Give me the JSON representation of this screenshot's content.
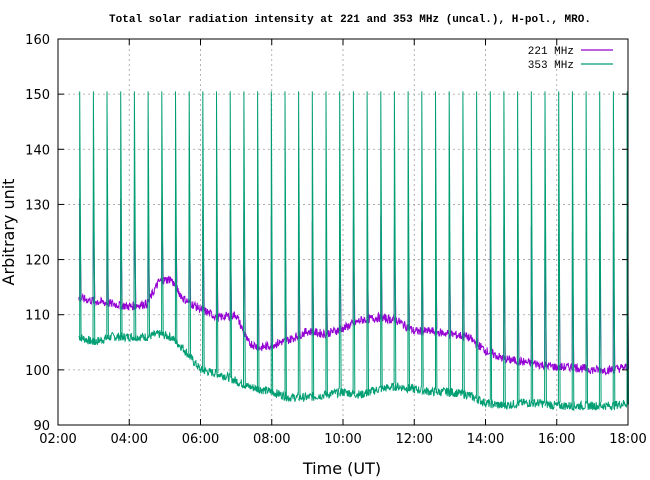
{
  "chart_data": {
    "type": "line",
    "title": "Total solar radiation intensity at 221 and 353 MHz (uncal.), H-pol., MRO.",
    "xlabel": "Time (UT)",
    "ylabel": "Arbitrary unit",
    "xlim": [
      "02:00",
      "18:00"
    ],
    "ylim": [
      90,
      160
    ],
    "x_ticks": [
      "02:00",
      "04:00",
      "06:00",
      "08:00",
      "10:00",
      "12:00",
      "14:00",
      "16:00",
      "18:00"
    ],
    "y_ticks": [
      90,
      100,
      110,
      120,
      130,
      140,
      150,
      160
    ],
    "grid": true,
    "legend_position": "top-right",
    "x_start": "02:35",
    "x_end": "18:00",
    "series": [
      {
        "name": "221 MHz",
        "color": "#9400d3",
        "baseline": {
          "x": [
            "02:35",
            "03:00",
            "03:30",
            "04:00",
            "04:30",
            "04:50",
            "05:10",
            "05:30",
            "06:00",
            "06:30",
            "07:00",
            "07:20",
            "07:40",
            "08:00",
            "08:30",
            "09:00",
            "09:30",
            "10:00",
            "10:30",
            "11:00",
            "11:30",
            "12:00",
            "12:30",
            "13:00",
            "13:30",
            "14:00",
            "14:30",
            "15:00",
            "15:30",
            "16:00",
            "16:30",
            "17:00",
            "17:30",
            "18:00"
          ],
          "y": [
            113,
            112.5,
            112,
            111.5,
            112,
            116,
            116.5,
            113,
            111,
            109.5,
            110,
            105,
            104,
            104.5,
            105.5,
            107,
            106.5,
            107.5,
            109,
            109.5,
            109,
            107,
            107,
            106.5,
            106,
            103.5,
            102,
            101.5,
            101,
            100.5,
            100.5,
            100,
            100,
            100.5
          ]
        },
        "spike_peaks": [
          131,
          130,
          130,
          131,
          130,
          130,
          131,
          130,
          130,
          129,
          129,
          129,
          129,
          129,
          128,
          128,
          127,
          127,
          127,
          127,
          127,
          127,
          128,
          126,
          128,
          127,
          127,
          128,
          128,
          127,
          126,
          126,
          126,
          126,
          126,
          125,
          125,
          125,
          125,
          125,
          125
        ]
      },
      {
        "name": "353 MHz",
        "color": "#009e73",
        "baseline": {
          "x": [
            "02:35",
            "03:00",
            "03:30",
            "04:00",
            "04:30",
            "04:50",
            "05:10",
            "05:30",
            "06:00",
            "06:20",
            "06:40",
            "07:00",
            "07:20",
            "07:40",
            "08:00",
            "08:30",
            "09:00",
            "09:30",
            "10:00",
            "10:30",
            "11:00",
            "11:30",
            "12:00",
            "12:30",
            "13:00",
            "13:30",
            "14:00",
            "14:30",
            "15:00",
            "15:30",
            "16:00",
            "16:30",
            "17:00",
            "17:30",
            "18:00"
          ],
          "y": [
            106,
            105,
            106,
            106,
            106,
            106.5,
            106,
            104,
            100,
            99.5,
            99,
            98,
            97,
            96.5,
            96,
            95,
            95,
            95.5,
            96,
            95.5,
            96.5,
            97,
            96.5,
            96,
            96,
            95.5,
            94,
            93.5,
            94,
            94,
            93.5,
            93.5,
            93.5,
            93.5,
            94
          ]
        },
        "spike_peak": 150.5,
        "spike_count": 41
      }
    ]
  }
}
